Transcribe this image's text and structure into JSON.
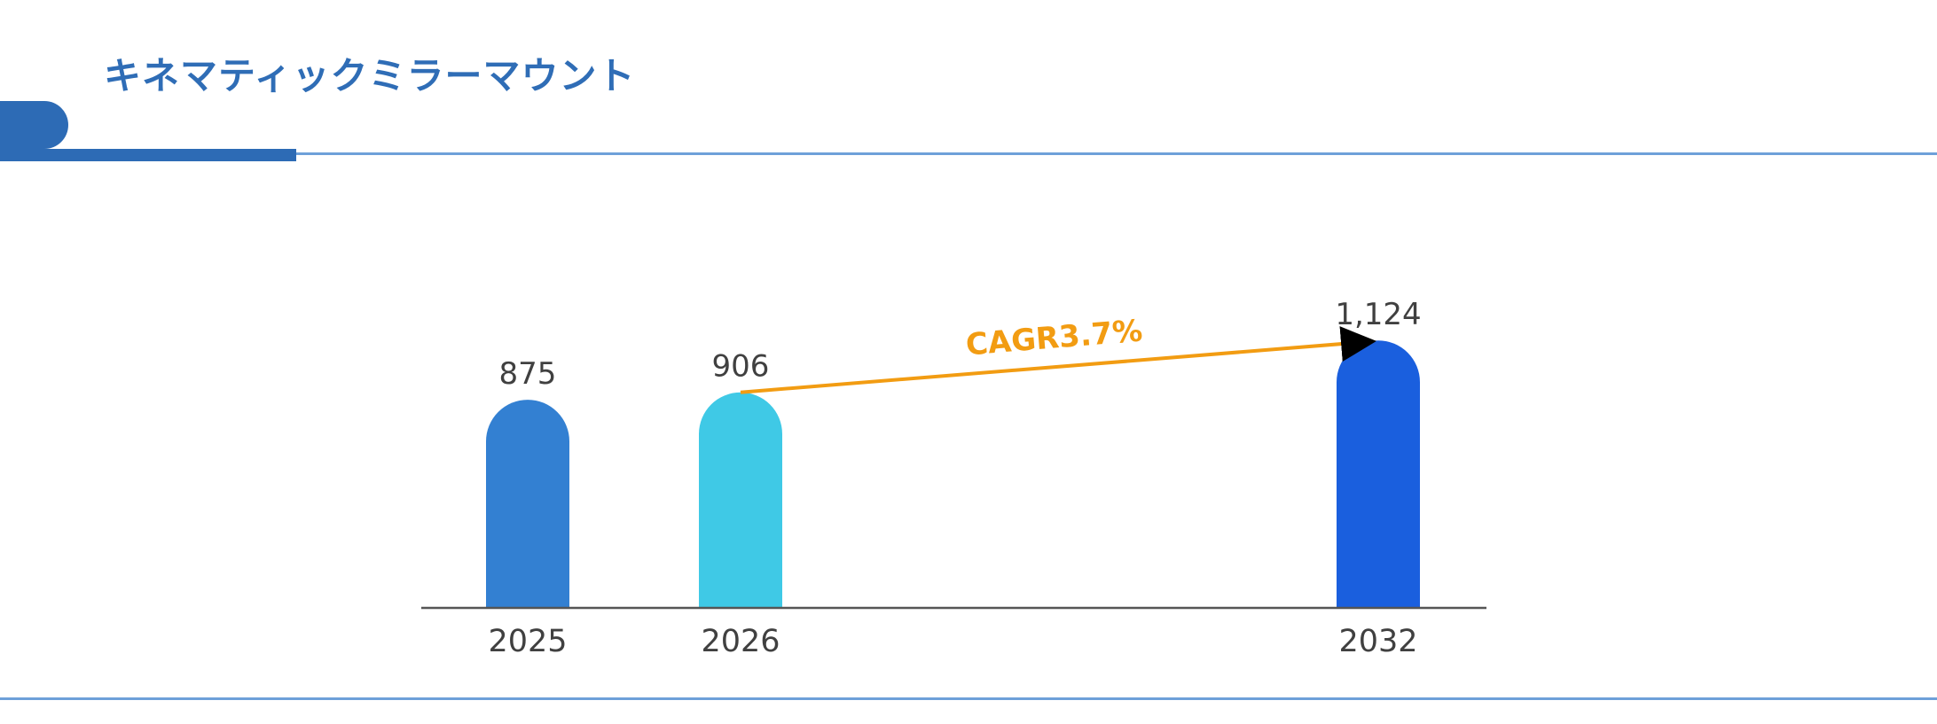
{
  "header": {
    "title": "キネマティックミラーマウント"
  },
  "colors": {
    "title": "#2f6db6",
    "accent_dark": "#2d6bb5",
    "rule": "#6ea0d9",
    "axis": "#555555",
    "label": "#404040",
    "cagr": "#f29c12"
  },
  "chart_data": {
    "type": "bar",
    "categories": [
      "2025",
      "2026",
      "2032"
    ],
    "values": [
      875,
      906,
      1124
    ],
    "value_labels": [
      "875",
      "906",
      "1,124"
    ],
    "bar_colors": [
      "#3380d2",
      "#3fc9e6",
      "#1a5fde"
    ],
    "annotation": {
      "text": "CAGR3.7%",
      "from_category": "2026",
      "to_category": "2032"
    },
    "title": "",
    "xlabel": "",
    "ylabel": "",
    "grid": false,
    "legend": "none"
  }
}
